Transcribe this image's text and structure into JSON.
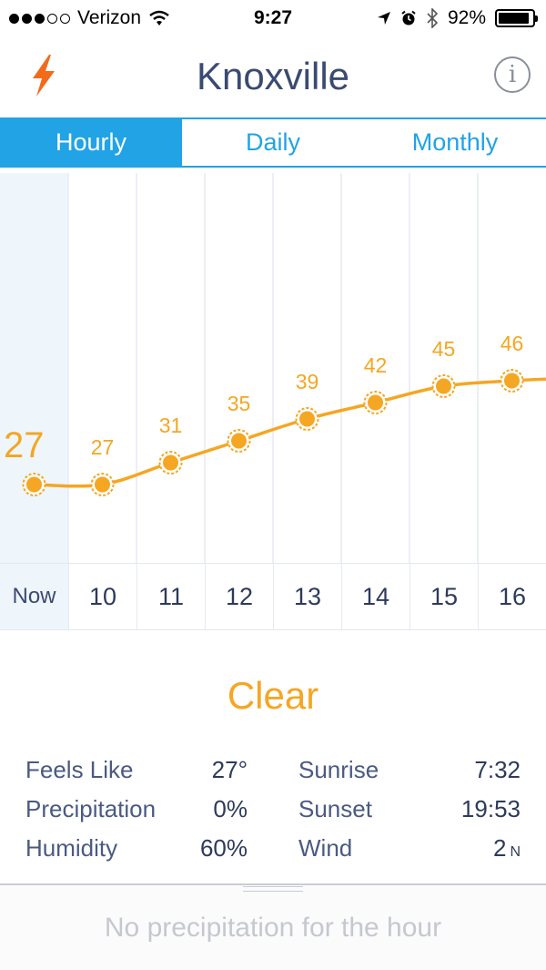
{
  "status_bar": {
    "carrier": "Verizon",
    "time": "9:27",
    "battery": "92%",
    "battery_level": 0.92
  },
  "header": {
    "city": "Knoxville"
  },
  "tabs": [
    {
      "label": "Hourly",
      "active": true
    },
    {
      "label": "Daily",
      "active": false
    },
    {
      "label": "Monthly",
      "active": false
    }
  ],
  "chart_data": {
    "type": "line",
    "categories": [
      "Now",
      "10",
      "11",
      "12",
      "13",
      "14",
      "15",
      "16"
    ],
    "series": [
      {
        "values": [
          27,
          27,
          31,
          35,
          39,
          42,
          45,
          46
        ]
      }
    ],
    "ylim": [
      0,
      60
    ],
    "grid": true
  },
  "condition": "Clear",
  "details": {
    "feels_like_label": "Feels Like",
    "feels_like_value": "27°",
    "precipitation_label": "Precipitation",
    "precipitation_value": "0%",
    "humidity_label": "Humidity",
    "humidity_value": "60%",
    "sunrise_label": "Sunrise",
    "sunrise_value": "7:32",
    "sunset_label": "Sunset",
    "sunset_value": "19:53",
    "wind_label": "Wind",
    "wind_value": "2",
    "wind_direction": "N"
  },
  "precipitation_message": "No precipitation for the hour",
  "colors": {
    "accent_blue": "#21a3e6",
    "temp_orange": "#f5a623",
    "bolt_orange": "#f26b1d"
  },
  "icons": {
    "bolt": "lightning-icon",
    "info": "info-icon",
    "sun": "sun-icon"
  }
}
